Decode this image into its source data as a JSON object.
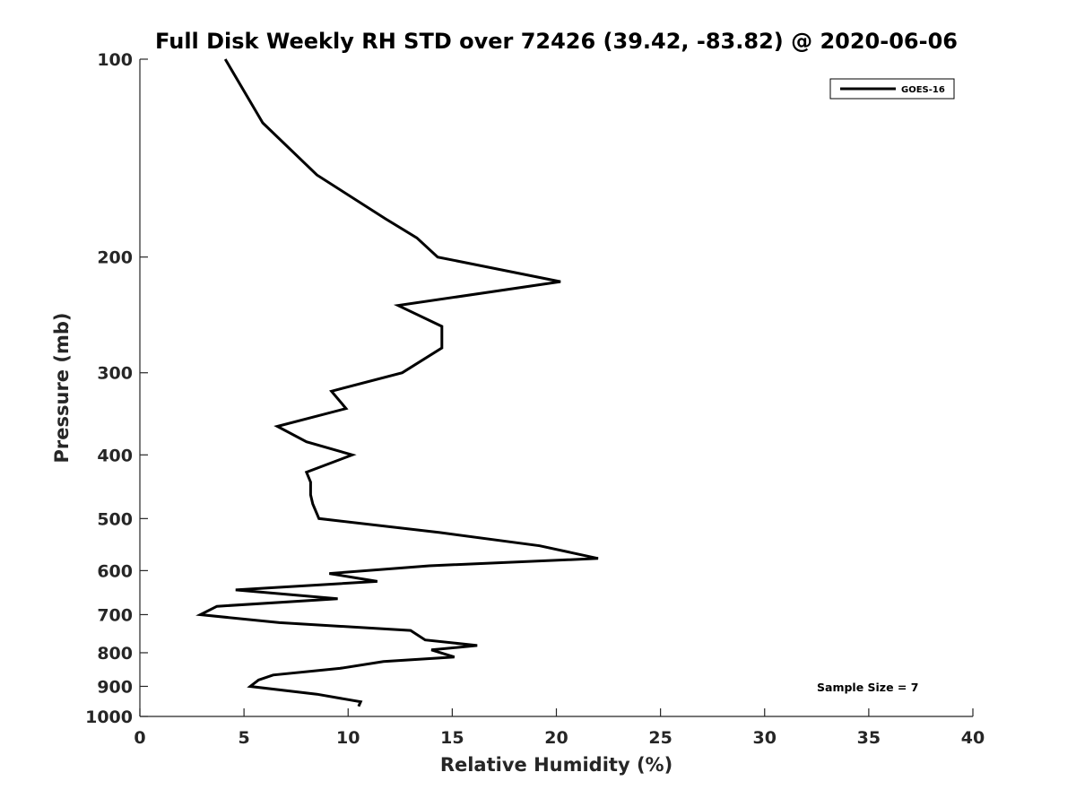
{
  "chart_data": {
    "type": "line",
    "title": "Full Disk Weekly RH STD over 72426 (39.42, -83.82) @ 2020-06-06",
    "xlabel": "Relative Humidity (%)",
    "ylabel": "Pressure (mb)",
    "xlim": [
      0,
      40
    ],
    "ylim": [
      100,
      1000
    ],
    "y_scale": "log",
    "y_reversed": true,
    "grid": false,
    "legend_position": "top-right",
    "x_ticks": [
      "0",
      "5",
      "10",
      "15",
      "20",
      "25",
      "30",
      "35",
      "40"
    ],
    "y_ticks": [
      "100",
      "200",
      "300",
      "400",
      "500",
      "600",
      "700",
      "800",
      "900",
      "1000"
    ],
    "annotation": "Sample Size = 7",
    "series": [
      {
        "name": "GOES-16",
        "color": "#000000",
        "points": [
          [
            4.1,
            100
          ],
          [
            5.9,
            125
          ],
          [
            8.5,
            150
          ],
          [
            11.8,
            175
          ],
          [
            13.3,
            187
          ],
          [
            14.3,
            200
          ],
          [
            20.2,
            218
          ],
          [
            12.4,
            237
          ],
          [
            14.5,
            255
          ],
          [
            14.5,
            275
          ],
          [
            12.6,
            300
          ],
          [
            9.2,
            320
          ],
          [
            9.9,
            340
          ],
          [
            6.6,
            362
          ],
          [
            8.0,
            382
          ],
          [
            10.2,
            400
          ],
          [
            8.0,
            425
          ],
          [
            8.2,
            440
          ],
          [
            8.2,
            460
          ],
          [
            8.3,
            475
          ],
          [
            8.6,
            500
          ],
          [
            14.4,
            525
          ],
          [
            19.2,
            550
          ],
          [
            22.0,
            575
          ],
          [
            13.9,
            590
          ],
          [
            9.1,
            606
          ],
          [
            11.4,
            623
          ],
          [
            4.6,
            642
          ],
          [
            9.5,
            662
          ],
          [
            3.7,
            680
          ],
          [
            2.9,
            700
          ],
          [
            6.7,
            720
          ],
          [
            13.0,
            740
          ],
          [
            13.7,
            765
          ],
          [
            16.2,
            780
          ],
          [
            14.0,
            792
          ],
          [
            15.1,
            812
          ],
          [
            11.7,
            825
          ],
          [
            9.6,
            845
          ],
          [
            6.4,
            865
          ],
          [
            5.7,
            880
          ],
          [
            5.3,
            900
          ],
          [
            8.5,
            925
          ],
          [
            10.6,
            950
          ],
          [
            10.5,
            965
          ]
        ]
      }
    ]
  }
}
